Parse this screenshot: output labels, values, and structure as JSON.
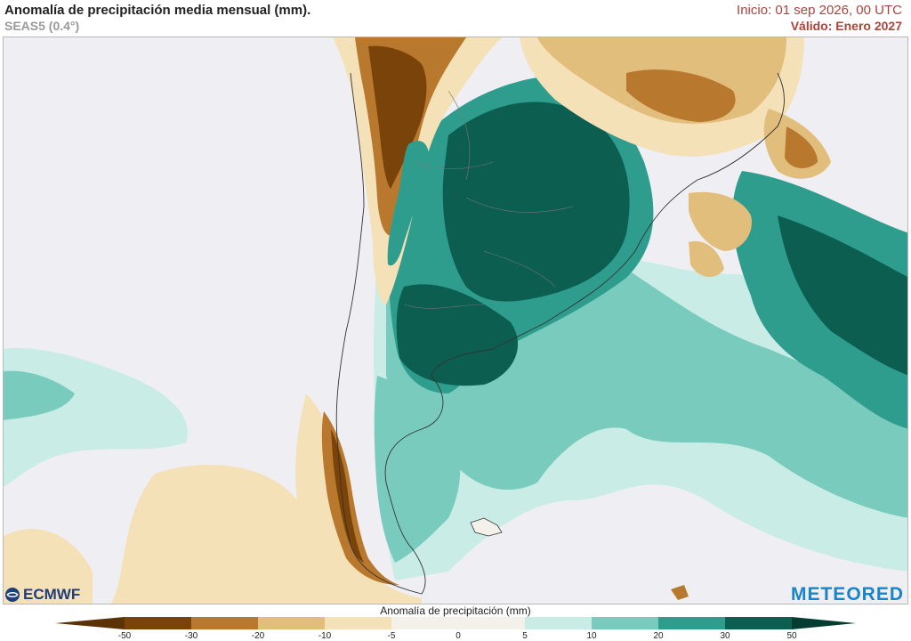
{
  "header": {
    "title": "Anomalía de precipitación media mensual (mm).",
    "subtitle": "SEAS5 (0.4°)",
    "init": "Inicio: 01 sep 2026, 00 UTC",
    "valid": "Válido: Enero 2027"
  },
  "logos": {
    "ecmwf": "ECMWF",
    "meteored": "METEORED"
  },
  "colorbar": {
    "title": "Anomalía de precipitación (mm)",
    "ticks": [
      "-50",
      "-30",
      "-20",
      "-10",
      "-5",
      "0",
      "5",
      "10",
      "20",
      "30",
      "50"
    ],
    "colors": [
      "#7a4309",
      "#b8782e",
      "#e2be7c",
      "#f5e1b8",
      "#f4f0ea",
      "#f4f0ea",
      "#c9ece6",
      "#78cbbd",
      "#2f9d8d",
      "#0b5e50"
    ]
  },
  "map": {
    "region": "South America",
    "colors": {
      "ocean": "#efeff3",
      "dry_strong": "#7a4309",
      "dry_mid": "#b8782e",
      "dry_light": "#e2be7c",
      "dry_pale": "#f5e1b8",
      "wet_pale": "#c9ece6",
      "wet_light": "#78cbbd",
      "wet_mid": "#2f9d8d",
      "wet_strong": "#0b5e50"
    }
  }
}
